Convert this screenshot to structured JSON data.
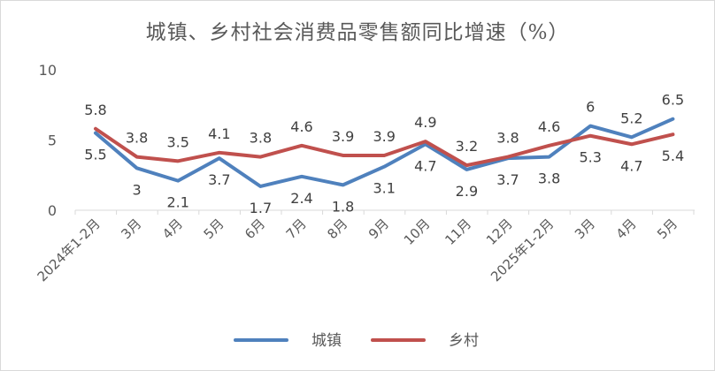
{
  "chart_data": {
    "type": "line",
    "title": "城镇、乡村社会消费品零售额同比增速（%）",
    "categories": [
      "2024年1-2月",
      "3月",
      "4月",
      "5月",
      "6月",
      "7月",
      "8月",
      "9月",
      "10月",
      "11月",
      "12月",
      "2025年1-2月",
      "3月",
      "4月",
      "5月"
    ],
    "ylim": [
      0,
      10
    ],
    "yticks": [
      0,
      5,
      10
    ],
    "grid": false,
    "legend_position": "bottom",
    "series": [
      {
        "name": "城镇",
        "color": "#4f81bd",
        "values": [
          5.5,
          3,
          2.1,
          3.7,
          1.7,
          2.4,
          1.8,
          3.1,
          4.7,
          2.9,
          3.7,
          3.8,
          6,
          5.2,
          6.5
        ]
      },
      {
        "name": "乡村",
        "color": "#c0504d",
        "values": [
          5.8,
          3.8,
          3.5,
          4.1,
          3.8,
          4.6,
          3.9,
          3.9,
          4.9,
          3.2,
          3.8,
          4.6,
          5.3,
          4.7,
          5.4
        ]
      }
    ]
  }
}
